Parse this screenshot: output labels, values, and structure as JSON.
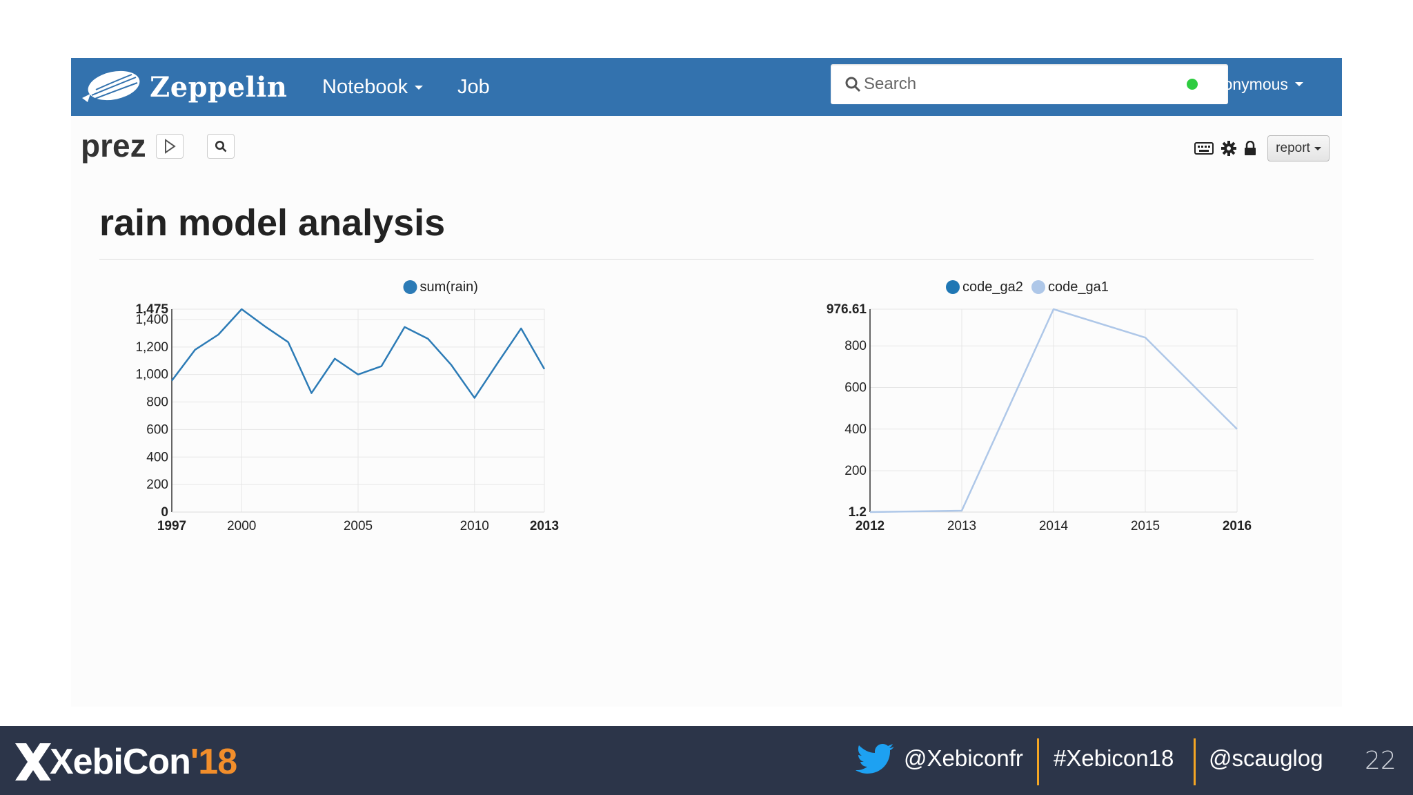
{
  "navbar": {
    "brand": "Zeppelin",
    "menu": [
      {
        "label": "Notebook"
      },
      {
        "label": "Job"
      }
    ],
    "search": {
      "placeholder": "Search"
    },
    "user": "anonymous"
  },
  "notebook": {
    "title": "prez",
    "report_label": "report"
  },
  "paragraph": {
    "title": "rain model analysis"
  },
  "chart_data": [
    {
      "type": "line",
      "series": [
        {
          "name": "sum(rain)",
          "color": "#2c7bb6",
          "x": [
            1997,
            1998,
            1999,
            2000,
            2001,
            2002,
            2003,
            2004,
            2005,
            2006,
            2007,
            2008,
            2009,
            2010,
            2011,
            2012,
            2013
          ],
          "values": [
            955,
            1180,
            1290,
            1475,
            1350,
            1235,
            865,
            1115,
            1000,
            1060,
            1345,
            1260,
            1070,
            830,
            1085,
            1335,
            1040
          ]
        }
      ],
      "xlim": [
        1997,
        2013
      ],
      "ylim": [
        0,
        1475
      ],
      "x_ticks": [
        "1997",
        "2000",
        "2005",
        "2010",
        "2013"
      ],
      "x_ticks_values": [
        1997,
        2000,
        2005,
        2010,
        2013
      ],
      "y_ticks": [
        "0",
        "200",
        "400",
        "600",
        "800",
        "1,000",
        "1,200",
        "1,400",
        "1,475"
      ],
      "y_ticks_values": [
        0,
        200,
        400,
        600,
        800,
        1000,
        1200,
        1400,
        1475
      ],
      "grid": true,
      "legend": "top-right"
    },
    {
      "type": "line",
      "series": [
        {
          "name": "code_ga2",
          "color": "#1f77b4",
          "x": [],
          "values": []
        },
        {
          "name": "code_ga1",
          "color": "#aec7e8",
          "x": [
            2012,
            2013,
            2014,
            2015,
            2016
          ],
          "values": [
            1.2,
            8,
            976.61,
            840,
            400
          ]
        }
      ],
      "xlim": [
        2012,
        2016
      ],
      "ylim": [
        1.2,
        976.61
      ],
      "x_ticks": [
        "2012",
        "2013",
        "2014",
        "2015",
        "2016"
      ],
      "x_ticks_values": [
        2012,
        2013,
        2014,
        2015,
        2016
      ],
      "y_ticks": [
        "1.2",
        "200",
        "400",
        "600",
        "800",
        "976.61"
      ],
      "y_ticks_values": [
        1.2,
        200,
        400,
        600,
        800,
        976.61
      ],
      "grid": true,
      "legend": "top-right"
    }
  ],
  "footer": {
    "logo_main": "XebiCon",
    "logo_year": "'18",
    "twitter": "@Xebiconfr",
    "hashtag": "#Xebicon18",
    "speaker": "@scauglog",
    "page": "22"
  }
}
